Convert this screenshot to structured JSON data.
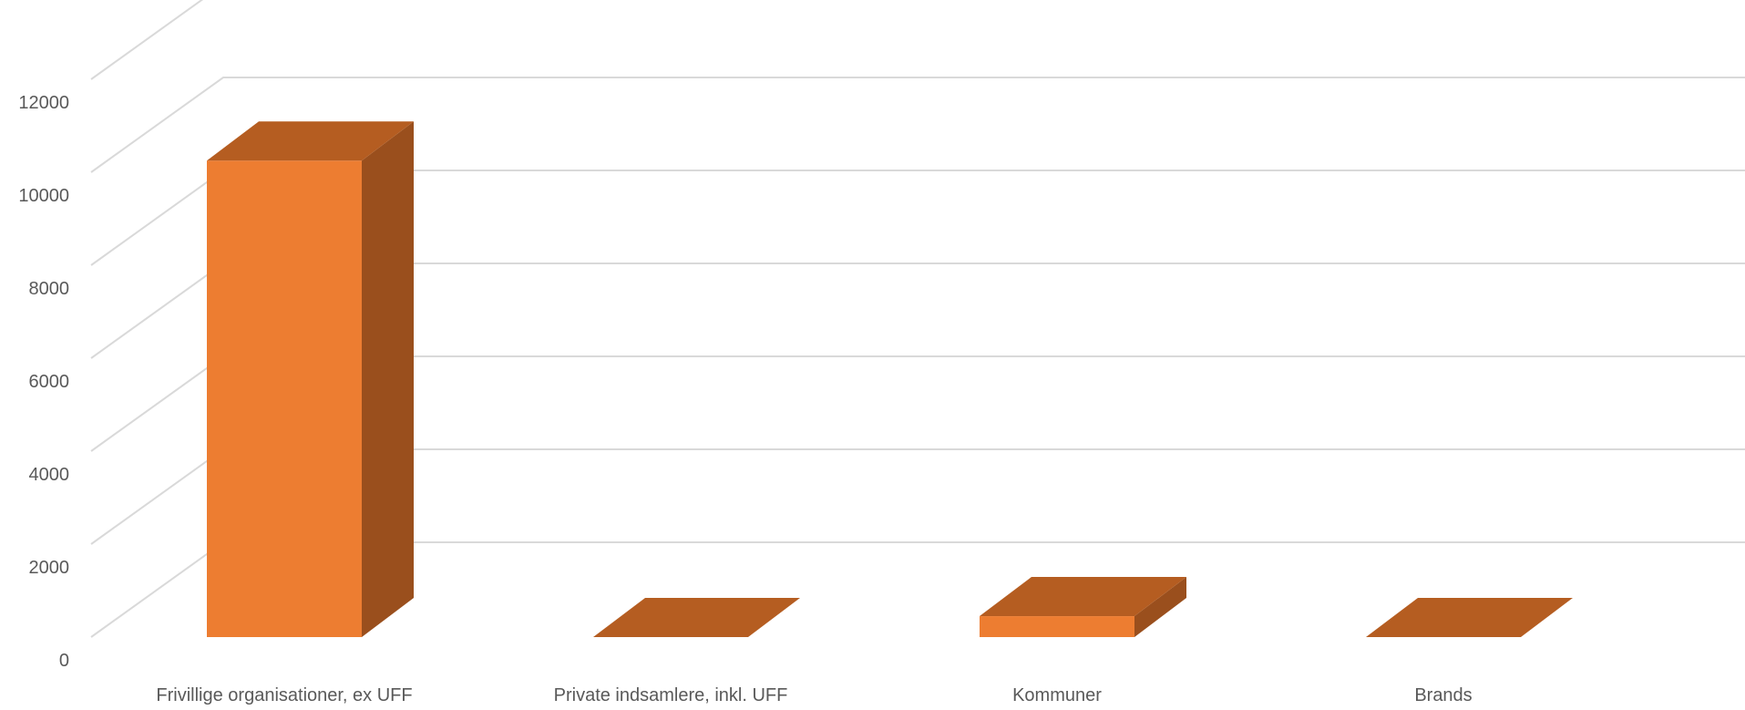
{
  "chart_data": {
    "type": "bar",
    "style": "3d-column",
    "categories": [
      "Frivillige organisationer, ex UFF",
      "Private indsamlere, inkl. UFF",
      "Kommuner",
      "Brands"
    ],
    "values": [
      10250,
      0,
      450,
      0
    ],
    "ylim": [
      0,
      14000
    ],
    "yticks": [
      0,
      2000,
      4000,
      6000,
      8000,
      10000,
      12000
    ],
    "grid": true,
    "legend": "none",
    "title": "",
    "xlabel": "",
    "ylabel": "",
    "colors": {
      "front": "#ed7d31",
      "top": "#b55d21",
      "side": "#9a4f1d",
      "grid": "#d9d9d9",
      "text": "#595959"
    }
  }
}
